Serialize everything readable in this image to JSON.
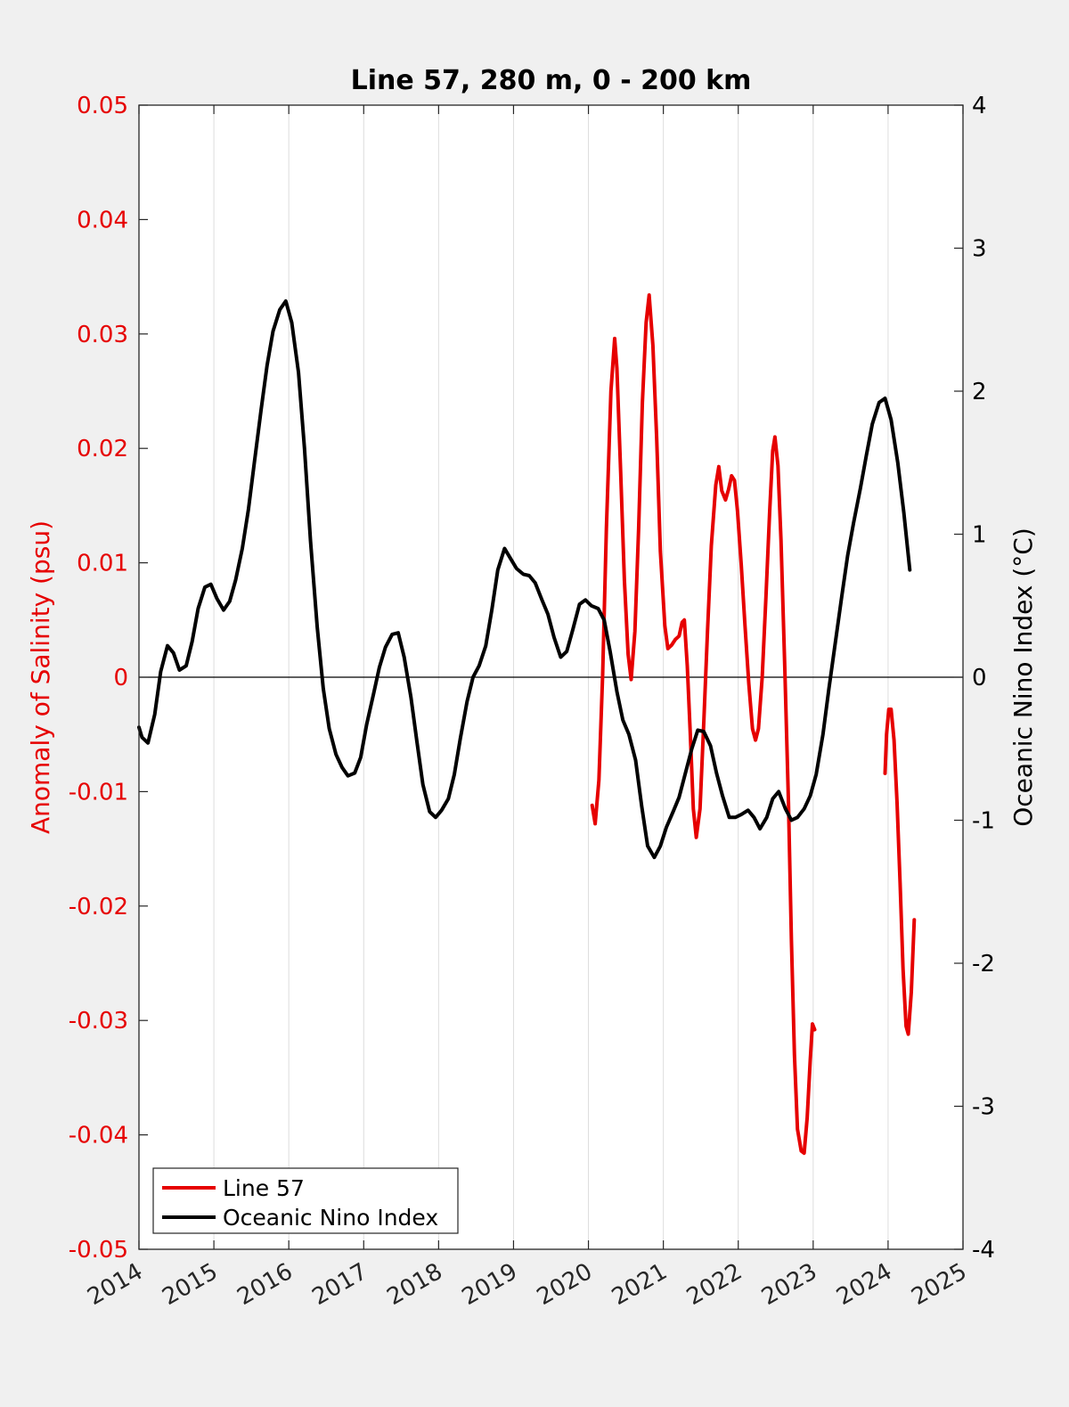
{
  "chart_data": {
    "type": "line",
    "title": "Line 57, 280 m, 0 - 200 km",
    "xlim": [
      2014,
      2025
    ],
    "x_ticks": [
      "2014",
      "2015",
      "2016",
      "2017",
      "2018",
      "2019",
      "2020",
      "2021",
      "2022",
      "2023",
      "2024",
      "2025"
    ],
    "left_axis": {
      "label": "Anomaly of Salinity (psu)",
      "color": "#e60000",
      "ylim": [
        -0.05,
        0.05
      ],
      "ticks": [
        "-0.05",
        "-0.04",
        "-0.03",
        "-0.02",
        "-0.01",
        "0",
        "0.01",
        "0.02",
        "0.03",
        "0.04",
        "0.05"
      ]
    },
    "right_axis": {
      "label": "Oceanic Nino Index (°C)",
      "color": "#000000",
      "ylim": [
        -4,
        4
      ],
      "ticks": [
        "-4",
        "-3",
        "-2",
        "-1",
        "0",
        "1",
        "2",
        "3",
        "4"
      ]
    },
    "grid": "vertical",
    "legend_position": "bottom-left",
    "series": [
      {
        "name": "Line 57",
        "axis": "left",
        "color": "#e60000",
        "segments": [
          [
            [
              2020.05,
              -0.0112
            ],
            [
              2020.09,
              -0.0128
            ],
            [
              2020.14,
              -0.009
            ],
            [
              2020.19,
              0.0002
            ],
            [
              2020.24,
              0.013
            ],
            [
              2020.3,
              0.025
            ],
            [
              2020.35,
              0.0296
            ],
            [
              2020.38,
              0.027
            ],
            [
              2020.43,
              0.018
            ],
            [
              2020.48,
              0.0085
            ],
            [
              2020.53,
              0.002
            ],
            [
              2020.57,
              -0.0002
            ],
            [
              2020.62,
              0.004
            ],
            [
              2020.67,
              0.013
            ],
            [
              2020.72,
              0.024
            ],
            [
              2020.77,
              0.031
            ],
            [
              2020.81,
              0.0334
            ],
            [
              2020.86,
              0.029
            ],
            [
              2020.91,
              0.021
            ],
            [
              2020.96,
              0.011
            ],
            [
              2021.02,
              0.0045
            ],
            [
              2021.06,
              0.0025
            ],
            [
              2021.11,
              0.0028
            ],
            [
              2021.16,
              0.0033
            ],
            [
              2021.21,
              0.0036
            ],
            [
              2021.25,
              0.0048
            ],
            [
              2021.28,
              0.005
            ],
            [
              2021.32,
              0.001
            ],
            [
              2021.36,
              -0.005
            ],
            [
              2021.4,
              -0.0115
            ],
            [
              2021.44,
              -0.014
            ],
            [
              2021.49,
              -0.0115
            ],
            [
              2021.54,
              -0.004
            ],
            [
              2021.59,
              0.004
            ],
            [
              2021.64,
              0.0115
            ],
            [
              2021.7,
              0.0168
            ],
            [
              2021.74,
              0.0184
            ],
            [
              2021.78,
              0.0163
            ],
            [
              2021.83,
              0.0155
            ],
            [
              2021.87,
              0.0164
            ],
            [
              2021.91,
              0.0176
            ],
            [
              2021.95,
              0.0172
            ],
            [
              2021.99,
              0.0145
            ],
            [
              2022.04,
              0.0098
            ],
            [
              2022.09,
              0.0045
            ],
            [
              2022.14,
              -0.0005
            ],
            [
              2022.19,
              -0.0045
            ],
            [
              2022.23,
              -0.0055
            ],
            [
              2022.27,
              -0.0045
            ],
            [
              2022.32,
              0.0
            ],
            [
              2022.37,
              0.007
            ],
            [
              2022.42,
              0.0145
            ],
            [
              2022.46,
              0.0198
            ],
            [
              2022.49,
              0.021
            ],
            [
              2022.53,
              0.0185
            ],
            [
              2022.57,
              0.012
            ],
            [
              2022.62,
              0.001
            ],
            [
              2022.67,
              -0.011
            ],
            [
              2022.71,
              -0.023
            ],
            [
              2022.75,
              -0.033
            ],
            [
              2022.79,
              -0.0395
            ],
            [
              2022.84,
              -0.0414
            ],
            [
              2022.88,
              -0.0416
            ],
            [
              2022.92,
              -0.0385
            ],
            [
              2022.96,
              -0.0335
            ],
            [
              2022.99,
              -0.0303
            ],
            [
              2023.02,
              -0.0308
            ]
          ],
          [
            [
              2023.96,
              -0.0084
            ],
            [
              2023.98,
              -0.005
            ],
            [
              2024.01,
              -0.0028
            ],
            [
              2024.04,
              -0.0028
            ],
            [
              2024.08,
              -0.0055
            ],
            [
              2024.12,
              -0.011
            ],
            [
              2024.16,
              -0.018
            ],
            [
              2024.2,
              -0.0255
            ],
            [
              2024.24,
              -0.0305
            ],
            [
              2024.27,
              -0.0312
            ],
            [
              2024.31,
              -0.0275
            ],
            [
              2024.35,
              -0.0212
            ]
          ]
        ]
      },
      {
        "name": "Oceanic Nino Index",
        "axis": "right",
        "color": "#000000",
        "segments": [
          [
            [
              2014.0,
              -0.35
            ],
            [
              2014.04,
              -0.42
            ],
            [
              2014.12,
              -0.46
            ],
            [
              2014.21,
              -0.26
            ],
            [
              2014.29,
              0.04
            ],
            [
              2014.38,
              0.22
            ],
            [
              2014.46,
              0.17
            ],
            [
              2014.54,
              0.05
            ],
            [
              2014.63,
              0.08
            ],
            [
              2014.71,
              0.25
            ],
            [
              2014.79,
              0.48
            ],
            [
              2014.88,
              0.63
            ],
            [
              2014.96,
              0.65
            ],
            [
              2015.04,
              0.55
            ],
            [
              2015.13,
              0.47
            ],
            [
              2015.21,
              0.53
            ],
            [
              2015.29,
              0.68
            ],
            [
              2015.38,
              0.9
            ],
            [
              2015.46,
              1.17
            ],
            [
              2015.54,
              1.5
            ],
            [
              2015.63,
              1.87
            ],
            [
              2015.71,
              2.18
            ],
            [
              2015.79,
              2.42
            ],
            [
              2015.88,
              2.57
            ],
            [
              2015.96,
              2.63
            ],
            [
              2016.04,
              2.48
            ],
            [
              2016.13,
              2.13
            ],
            [
              2016.21,
              1.6
            ],
            [
              2016.29,
              0.95
            ],
            [
              2016.38,
              0.35
            ],
            [
              2016.46,
              -0.08
            ],
            [
              2016.54,
              -0.36
            ],
            [
              2016.63,
              -0.54
            ],
            [
              2016.71,
              -0.63
            ],
            [
              2016.79,
              -0.69
            ],
            [
              2016.88,
              -0.67
            ],
            [
              2016.96,
              -0.56
            ],
            [
              2017.04,
              -0.33
            ],
            [
              2017.13,
              -0.12
            ],
            [
              2017.21,
              0.07
            ],
            [
              2017.29,
              0.21
            ],
            [
              2017.38,
              0.3
            ],
            [
              2017.46,
              0.31
            ],
            [
              2017.54,
              0.14
            ],
            [
              2017.63,
              -0.14
            ],
            [
              2017.71,
              -0.45
            ],
            [
              2017.79,
              -0.75
            ],
            [
              2017.88,
              -0.94
            ],
            [
              2017.96,
              -0.98
            ],
            [
              2018.04,
              -0.93
            ],
            [
              2018.13,
              -0.85
            ],
            [
              2018.21,
              -0.68
            ],
            [
              2018.29,
              -0.43
            ],
            [
              2018.38,
              -0.17
            ],
            [
              2018.46,
              0.0
            ],
            [
              2018.54,
              0.08
            ],
            [
              2018.63,
              0.22
            ],
            [
              2018.71,
              0.47
            ],
            [
              2018.79,
              0.75
            ],
            [
              2018.88,
              0.9
            ],
            [
              2018.96,
              0.83
            ],
            [
              2019.04,
              0.76
            ],
            [
              2019.13,
              0.72
            ],
            [
              2019.21,
              0.71
            ],
            [
              2019.29,
              0.66
            ],
            [
              2019.38,
              0.54
            ],
            [
              2019.46,
              0.44
            ],
            [
              2019.54,
              0.28
            ],
            [
              2019.63,
              0.14
            ],
            [
              2019.71,
              0.18
            ],
            [
              2019.79,
              0.33
            ],
            [
              2019.88,
              0.51
            ],
            [
              2019.96,
              0.54
            ],
            [
              2020.04,
              0.5
            ],
            [
              2020.13,
              0.48
            ],
            [
              2020.21,
              0.4
            ],
            [
              2020.29,
              0.18
            ],
            [
              2020.38,
              -0.1
            ],
            [
              2020.46,
              -0.3
            ],
            [
              2020.54,
              -0.4
            ],
            [
              2020.63,
              -0.58
            ],
            [
              2020.71,
              -0.9
            ],
            [
              2020.79,
              -1.18
            ],
            [
              2020.88,
              -1.26
            ],
            [
              2020.96,
              -1.18
            ],
            [
              2021.04,
              -1.05
            ],
            [
              2021.13,
              -0.94
            ],
            [
              2021.21,
              -0.84
            ],
            [
              2021.29,
              -0.68
            ],
            [
              2021.38,
              -0.5
            ],
            [
              2021.46,
              -0.37
            ],
            [
              2021.54,
              -0.38
            ],
            [
              2021.63,
              -0.48
            ],
            [
              2021.71,
              -0.67
            ],
            [
              2021.79,
              -0.83
            ],
            [
              2021.88,
              -0.98
            ],
            [
              2021.96,
              -0.98
            ],
            [
              2022.04,
              -0.96
            ],
            [
              2022.13,
              -0.93
            ],
            [
              2022.21,
              -0.98
            ],
            [
              2022.29,
              -1.06
            ],
            [
              2022.38,
              -0.98
            ],
            [
              2022.46,
              -0.85
            ],
            [
              2022.54,
              -0.8
            ],
            [
              2022.63,
              -0.92
            ],
            [
              2022.71,
              -1.0
            ],
            [
              2022.79,
              -0.98
            ],
            [
              2022.88,
              -0.92
            ],
            [
              2022.96,
              -0.83
            ],
            [
              2023.04,
              -0.68
            ],
            [
              2023.13,
              -0.4
            ],
            [
              2023.21,
              -0.08
            ],
            [
              2023.29,
              0.22
            ],
            [
              2023.38,
              0.56
            ],
            [
              2023.46,
              0.85
            ],
            [
              2023.54,
              1.08
            ],
            [
              2023.63,
              1.32
            ],
            [
              2023.71,
              1.55
            ],
            [
              2023.79,
              1.77
            ],
            [
              2023.88,
              1.92
            ],
            [
              2023.96,
              1.95
            ],
            [
              2024.04,
              1.8
            ],
            [
              2024.13,
              1.5
            ],
            [
              2024.21,
              1.15
            ],
            [
              2024.29,
              0.75
            ]
          ]
        ]
      }
    ]
  }
}
